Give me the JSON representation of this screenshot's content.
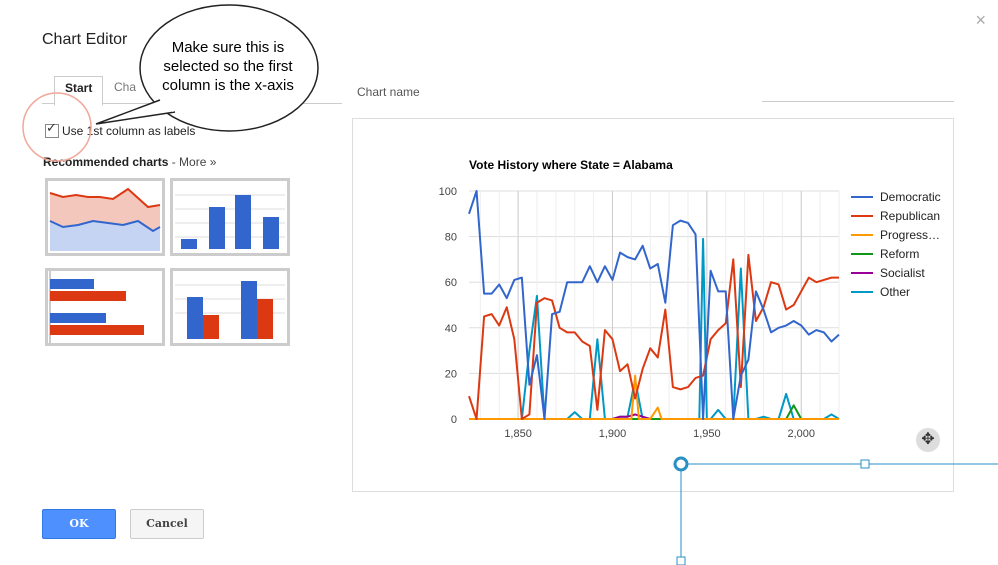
{
  "editor": {
    "title": "Chart Editor",
    "close_glyph": "×"
  },
  "tabs": [
    {
      "label": "Start"
    },
    {
      "label": "Cha"
    }
  ],
  "options": {
    "use_first_column_label": "Use 1st column as labels",
    "use_first_column_checked": true
  },
  "recommended": {
    "label": "Recommended charts",
    "more_link": "- More »"
  },
  "callout": {
    "line1": "Make sure this is",
    "line2": "selected so the first",
    "line3": "column is the x-axis"
  },
  "chart_name": {
    "placeholder": "Chart name"
  },
  "buttons": {
    "ok": "OK",
    "cancel": "Cancel"
  },
  "icons": {
    "close": "close-icon",
    "move": "move-arrows-icon",
    "check": "checkmark-icon"
  },
  "colors": {
    "democratic": "#3366cc",
    "republican": "#dc3912",
    "progressive": "#ff9900",
    "reform": "#109618",
    "socialist": "#990099",
    "other": "#0099c6",
    "accent": "#4d90fe"
  },
  "chart_data": {
    "type": "line",
    "title": "Vote History where State = Alabama",
    "xlabel": "",
    "ylabel": "",
    "xlim": [
      1824,
      2020
    ],
    "ylim": [
      0,
      100
    ],
    "x_ticks": [
      "1,850",
      "1,900",
      "1,950",
      "2,000"
    ],
    "y_ticks": [
      "0",
      "20",
      "40",
      "60",
      "80",
      "100"
    ],
    "grid": true,
    "legend_position": "right",
    "series": [
      {
        "name": "Democratic",
        "color": "#3366cc",
        "x": [
          1824,
          1828,
          1832,
          1836,
          1840,
          1844,
          1848,
          1852,
          1856,
          1860,
          1864,
          1868,
          1872,
          1876,
          1880,
          1884,
          1888,
          1892,
          1896,
          1900,
          1904,
          1908,
          1912,
          1916,
          1920,
          1924,
          1928,
          1932,
          1936,
          1940,
          1944,
          1948,
          1952,
          1956,
          1960,
          1964,
          1968,
          1972,
          1976,
          1980,
          1984,
          1988,
          1992,
          1996,
          2000,
          2004,
          2008,
          2012,
          2016,
          2020
        ],
        "y": [
          90,
          100,
          55,
          55,
          59,
          53,
          61,
          62,
          15,
          28,
          0,
          46,
          47,
          60,
          60,
          60,
          67,
          60,
          67,
          61,
          73,
          71,
          70,
          76,
          66,
          68,
          51,
          85,
          87,
          86,
          81,
          0,
          65,
          56,
          56,
          0,
          19,
          26,
          56,
          48,
          38,
          40,
          41,
          43,
          41,
          37,
          39,
          38,
          34,
          37
        ]
      },
      {
        "name": "Republican",
        "color": "#dc3912",
        "x": [
          1824,
          1828,
          1832,
          1836,
          1840,
          1844,
          1848,
          1852,
          1856,
          1860,
          1864,
          1868,
          1872,
          1876,
          1880,
          1884,
          1888,
          1892,
          1896,
          1900,
          1904,
          1908,
          1912,
          1916,
          1920,
          1924,
          1928,
          1932,
          1936,
          1940,
          1944,
          1948,
          1952,
          1956,
          1960,
          1964,
          1968,
          1972,
          1976,
          1980,
          1984,
          1988,
          1992,
          1996,
          2000,
          2004,
          2008,
          2012,
          2016,
          2020
        ],
        "y": [
          10,
          0,
          45,
          46,
          41,
          49,
          35,
          0,
          2,
          51,
          53,
          52,
          40,
          38,
          38,
          34,
          32,
          4,
          39,
          35,
          21,
          24,
          9,
          22,
          31,
          27,
          48,
          14,
          13,
          14,
          18,
          19,
          35,
          39,
          42,
          70,
          14,
          72,
          43,
          49,
          60,
          59,
          48,
          50,
          56,
          62,
          60,
          61,
          62,
          62
        ]
      },
      {
        "name": "Progress…",
        "color": "#ff9900",
        "x": [
          1824,
          1908,
          1910,
          1912,
          1914,
          1916,
          1920,
          1924,
          1926,
          1928,
          2020
        ],
        "y": [
          0,
          0,
          0,
          19,
          0,
          0,
          0,
          5,
          0,
          0,
          0
        ]
      },
      {
        "name": "Reform",
        "color": "#109618",
        "x": [
          1824,
          1988,
          1992,
          1996,
          2000,
          2020
        ],
        "y": [
          0,
          0,
          0,
          6,
          0,
          0
        ]
      },
      {
        "name": "Socialist",
        "color": "#990099",
        "x": [
          1824,
          1900,
          1904,
          1908,
          1912,
          1916,
          1920,
          1924,
          2020
        ],
        "y": [
          0,
          0,
          1,
          1,
          2,
          1,
          0,
          0,
          0
        ]
      },
      {
        "name": "Other",
        "color": "#0099c6",
        "x": [
          1824,
          1852,
          1856,
          1860,
          1864,
          1868,
          1872,
          1876,
          1880,
          1884,
          1888,
          1892,
          1896,
          1900,
          1904,
          1908,
          1912,
          1916,
          1944,
          1946,
          1948,
          1950,
          1952,
          1956,
          1960,
          1964,
          1968,
          1972,
          1976,
          1980,
          1984,
          1988,
          1992,
          1996,
          2000,
          2004,
          2008,
          2012,
          2016,
          2020
        ],
        "y": [
          0,
          0,
          30,
          54,
          0,
          0,
          0,
          0,
          3,
          0,
          0,
          35,
          0,
          0,
          1,
          1,
          17,
          0,
          0,
          0,
          79,
          0,
          0,
          4,
          0,
          0,
          66,
          0,
          0,
          1,
          0,
          0,
          11,
          0,
          0,
          0,
          0,
          0,
          2,
          0
        ]
      }
    ]
  }
}
